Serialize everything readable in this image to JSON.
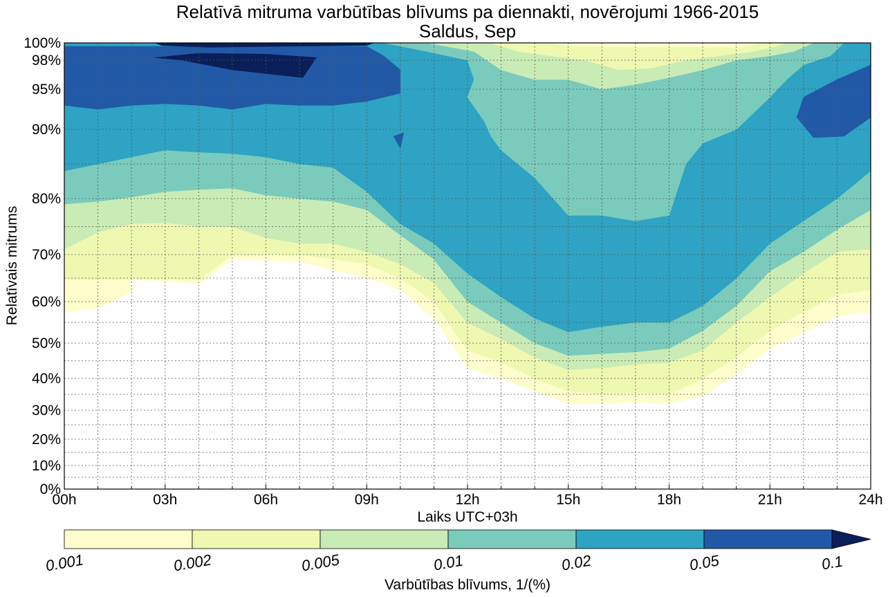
{
  "chart_data": {
    "type": "heatmap",
    "title": "Relatīvā mitruma varbūtības blīvums pa diennakti, novērojumi 1966-2015",
    "subtitle": "Saldus, Sep",
    "xlabel": "Laiks UTC+03h",
    "ylabel": "Relatīvais mitrums",
    "x_ticks": [
      "00h",
      "03h",
      "06h",
      "09h",
      "12h",
      "15h",
      "18h",
      "21h",
      "24h"
    ],
    "x_hours": [
      0,
      3,
      6,
      9,
      12,
      15,
      18,
      21,
      24
    ],
    "y_ticks": [
      "0%",
      "10%",
      "20%",
      "30%",
      "40%",
      "50%",
      "60%",
      "70%",
      "80%",
      "90%",
      "95%",
      "98%",
      "100%"
    ],
    "y_values": [
      0,
      10,
      20,
      30,
      40,
      50,
      60,
      70,
      80,
      90,
      95,
      98,
      100
    ],
    "xlim": [
      0,
      24
    ],
    "ylim": [
      0,
      100
    ],
    "grid": true,
    "colorbar": {
      "label": "Varbūtības blīvums, 1/(%)",
      "tick_labels": [
        "0.001",
        "0.002",
        "0.005",
        "0.01",
        "0.02",
        "0.05",
        "0.1"
      ],
      "levels": [
        0.001,
        0.002,
        0.005,
        0.01,
        0.02,
        0.05,
        0.1
      ],
      "colors": [
        "#fdfecb",
        "#eef8b0",
        "#c9ebb5",
        "#7acbbc",
        "#2ea3c3",
        "#2259a7",
        "#0a1f5a"
      ],
      "extend": "max",
      "orientation": "horizontal"
    },
    "contours": [
      {
        "level": 0.001,
        "color": "#fdfecb",
        "points": [
          [
            0,
            57.5
          ],
          [
            1,
            58.5
          ],
          [
            2,
            62
          ],
          [
            2,
            64.7
          ],
          [
            4,
            63.8
          ],
          [
            5,
            69
          ],
          [
            7,
            68.5
          ],
          [
            9,
            65
          ],
          [
            10,
            62.5
          ],
          [
            11,
            56
          ],
          [
            12,
            43
          ],
          [
            13,
            40
          ],
          [
            14,
            36
          ],
          [
            15,
            32
          ],
          [
            16,
            32
          ],
          [
            17,
            32.5
          ],
          [
            18,
            32
          ],
          [
            19,
            34.5
          ],
          [
            20,
            41
          ],
          [
            21,
            48.5
          ],
          [
            22,
            52.5
          ],
          [
            23,
            56.5
          ],
          [
            24,
            57.5
          ],
          [
            24,
            100
          ],
          [
            0,
            100
          ]
        ]
      },
      {
        "level": 0.002,
        "color": "#eef8b0",
        "points": [
          [
            0,
            64.7
          ],
          [
            2,
            64.7
          ],
          [
            4,
            64.7
          ],
          [
            5,
            70
          ],
          [
            7,
            70
          ],
          [
            9,
            68
          ],
          [
            10,
            65
          ],
          [
            11,
            60
          ],
          [
            12,
            48
          ],
          [
            13,
            44.5
          ],
          [
            14,
            40
          ],
          [
            15,
            36
          ],
          [
            16,
            35
          ],
          [
            17,
            35.5
          ],
          [
            18,
            35
          ],
          [
            19,
            40
          ],
          [
            20,
            46
          ],
          [
            21,
            53
          ],
          [
            22,
            57.5
          ],
          [
            23,
            61.5
          ],
          [
            24,
            62.5
          ],
          [
            24,
            100
          ],
          [
            0,
            100
          ]
        ]
      },
      {
        "level": 0.005,
        "color": "#c9ebb5",
        "points": [
          [
            0,
            71
          ],
          [
            1,
            74
          ],
          [
            2,
            75.5
          ],
          [
            3,
            75.7
          ],
          [
            4,
            75
          ],
          [
            5,
            75
          ],
          [
            6,
            73
          ],
          [
            7,
            72
          ],
          [
            8,
            72
          ],
          [
            9,
            70.5
          ],
          [
            10,
            68
          ],
          [
            11,
            64
          ],
          [
            12,
            55
          ],
          [
            13,
            51
          ],
          [
            14,
            46
          ],
          [
            15,
            42.5
          ],
          [
            16,
            43
          ],
          [
            17,
            44
          ],
          [
            18,
            44.5
          ],
          [
            19,
            48
          ],
          [
            20,
            55
          ],
          [
            21,
            61
          ],
          [
            22,
            66
          ],
          [
            23,
            70.5
          ],
          [
            24,
            71
          ],
          [
            24,
            100
          ],
          [
            0,
            100
          ]
        ]
      },
      {
        "level": 0.01,
        "color": "#7acbbc",
        "points": [
          [
            0,
            79
          ],
          [
            1,
            79.5
          ],
          [
            2,
            80.2
          ],
          [
            3,
            81
          ],
          [
            4,
            81.3
          ],
          [
            5,
            81.5
          ],
          [
            6,
            80.5
          ],
          [
            7,
            80
          ],
          [
            8,
            79.5
          ],
          [
            9,
            78
          ],
          [
            10,
            73.5
          ],
          [
            11,
            69
          ],
          [
            12,
            60
          ],
          [
            13,
            55
          ],
          [
            14,
            50
          ],
          [
            15,
            46.5
          ],
          [
            16,
            47
          ],
          [
            17,
            47.5
          ],
          [
            18,
            48.5
          ],
          [
            19,
            53
          ],
          [
            20,
            59
          ],
          [
            21,
            66.5
          ],
          [
            22,
            70.5
          ],
          [
            23,
            74.5
          ],
          [
            24,
            78
          ],
          [
            24,
            100
          ],
          [
            0,
            100
          ]
        ]
      },
      {
        "level": 0.02,
        "color": "#2ea3c3",
        "points": [
          [
            0,
            84
          ],
          [
            1,
            85
          ],
          [
            2,
            86
          ],
          [
            3,
            87
          ],
          [
            4,
            86.7
          ],
          [
            5,
            86.5
          ],
          [
            6,
            86
          ],
          [
            7,
            85
          ],
          [
            8,
            84.5
          ],
          [
            9,
            81
          ],
          [
            10,
            75.5
          ],
          [
            11,
            72
          ],
          [
            12,
            66
          ],
          [
            13,
            61
          ],
          [
            14,
            56
          ],
          [
            15,
            52.7
          ],
          [
            16,
            54
          ],
          [
            17,
            55
          ],
          [
            18,
            55
          ],
          [
            19,
            59
          ],
          [
            20,
            65
          ],
          [
            21,
            72
          ],
          [
            22,
            76
          ],
          [
            23,
            80
          ],
          [
            24,
            84
          ],
          [
            24,
            100
          ],
          [
            0,
            100
          ]
        ]
      },
      {
        "level": 0.05,
        "color": "#2259a7",
        "points": [
          [
            0,
            93
          ],
          [
            1,
            92.5
          ],
          [
            2,
            93
          ],
          [
            3,
            93.2
          ],
          [
            4,
            93
          ],
          [
            5,
            92.5
          ],
          [
            6,
            93.2
          ],
          [
            7,
            93
          ],
          [
            8,
            93
          ],
          [
            9,
            93.5
          ],
          [
            10,
            94.5
          ],
          [
            10,
            97
          ],
          [
            9.5,
            98.5
          ],
          [
            9,
            99.6
          ],
          [
            0,
            99.6
          ]
        ]
      },
      {
        "level": 0.05,
        "color": "#2259a7",
        "points": [
          [
            22,
            94
          ],
          [
            23,
            96
          ],
          [
            24,
            97.5
          ],
          [
            24,
            91.5
          ],
          [
            23.2,
            89
          ],
          [
            22.3,
            88.8
          ],
          [
            21.8,
            91.5
          ],
          [
            22,
            94
          ]
        ]
      },
      {
        "level": 0.05,
        "color": "#2259a7",
        "points": [
          [
            9.8,
            89
          ],
          [
            10.1,
            89.5
          ],
          [
            10,
            87.3
          ],
          [
            9.8,
            89
          ]
        ]
      },
      {
        "level": 0.1,
        "color": "#0a1f5a",
        "points": [
          [
            2.7,
            98.3
          ],
          [
            4,
            98.8
          ],
          [
            6,
            98.7
          ],
          [
            7.5,
            98.3
          ],
          [
            7.1,
            96.2
          ],
          [
            5,
            97
          ],
          [
            3.5,
            98
          ],
          [
            2.7,
            98.3
          ]
        ]
      },
      {
        "level": 0.1,
        "color": "#0a1f5a",
        "points": [
          [
            2.7,
            100
          ],
          [
            2.9,
            99.7
          ],
          [
            4.3,
            99.5
          ],
          [
            6.5,
            99.6
          ],
          [
            9,
            99.7
          ],
          [
            9.2,
            100
          ]
        ]
      },
      {
        "level": 0.02,
        "color": "#2ea3c3",
        "points": [
          [
            15.9,
            70
          ],
          [
            16.2,
            69
          ],
          [
            16.3,
            70
          ],
          [
            15.9,
            70
          ]
        ]
      }
    ],
    "light_patches": [
      {
        "level": 0.01,
        "color": "#7acbbc",
        "points": [
          [
            9.5,
            100
          ],
          [
            10.8,
            99
          ],
          [
            12,
            98
          ],
          [
            12.2,
            96
          ],
          [
            12,
            94
          ],
          [
            12.5,
            91
          ],
          [
            12.7,
            89
          ],
          [
            13,
            87
          ],
          [
            14,
            83
          ],
          [
            15,
            77
          ],
          [
            16,
            77
          ],
          [
            17,
            76
          ],
          [
            18,
            77
          ],
          [
            18.5,
            85
          ],
          [
            19,
            88
          ],
          [
            20,
            90
          ],
          [
            21,
            94
          ],
          [
            21.5,
            96
          ],
          [
            22,
            97.5
          ],
          [
            22.8,
            98.5
          ],
          [
            23.2,
            100
          ]
        ]
      },
      {
        "level": 0.005,
        "color": "#c9ebb5",
        "points": [
          [
            10.8,
            100
          ],
          [
            12.2,
            99
          ],
          [
            13,
            97
          ],
          [
            14,
            96
          ],
          [
            15,
            96
          ],
          [
            16,
            95
          ],
          [
            17,
            95.5
          ],
          [
            18,
            96.2
          ],
          [
            19,
            97
          ],
          [
            20,
            98
          ],
          [
            21,
            98.5
          ],
          [
            21.7,
            99
          ],
          [
            22.3,
            100
          ]
        ]
      },
      {
        "level": 0.002,
        "color": "#eef8b0",
        "points": [
          [
            12.7,
            100
          ],
          [
            13.5,
            99
          ],
          [
            14.5,
            98.5
          ],
          [
            15.5,
            98
          ],
          [
            16.5,
            97
          ],
          [
            17.5,
            97.2
          ],
          [
            18.5,
            98
          ],
          [
            19.5,
            98.5
          ],
          [
            20.5,
            99
          ],
          [
            21.2,
            99.6
          ],
          [
            21.5,
            100
          ]
        ]
      },
      {
        "level": 0.001,
        "color": "#fdfecb",
        "points": [
          [
            14.5,
            100
          ],
          [
            15,
            99.7
          ],
          [
            17,
            99.5
          ],
          [
            18,
            99.6
          ],
          [
            19,
            99.5
          ],
          [
            20,
            99.5
          ],
          [
            20.5,
            99.8
          ],
          [
            20.7,
            100
          ]
        ]
      }
    ]
  }
}
